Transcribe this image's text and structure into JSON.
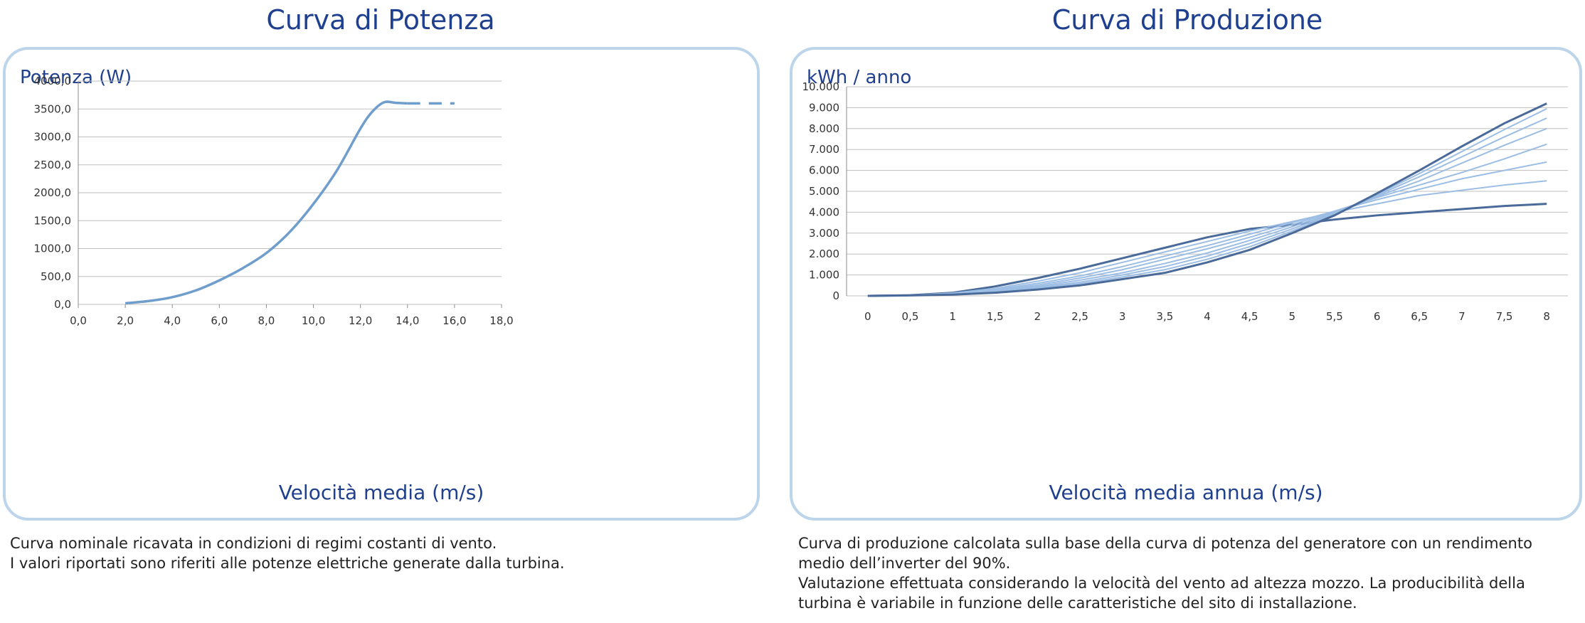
{
  "left": {
    "title": "Curva di Potenza",
    "caption": [
      "Curva nominale ricavata in condizioni di regimi costanti di vento.",
      "I valori riportati sono riferiti alle potenze elettriche generate dalla turbina."
    ]
  },
  "right": {
    "title": "Curva di Produzione",
    "caption": [
      "Curva di produzione calcolata sulla base della curva di potenza del generatore con un rendimento medio dell’inverter del 90%.",
      "Valutazione effettuata considerando la velocità del vento ad altezza mozzo. La producibilità della turbina è variabile in funzione delle caratteristiche del sito di installazione."
    ]
  },
  "colors": {
    "accent": "#1f3f8f",
    "frame": "#bcd5ea",
    "power_line": "#6f9dcc",
    "dark_line": "#4a6a9a",
    "light_line": "#9cbde4"
  },
  "chart_data": [
    {
      "type": "line",
      "title": "",
      "ylabel": "Potenza (W)",
      "xlabel": "Velocità media (m/s)",
      "xlim": [
        0,
        18
      ],
      "ylim": [
        0,
        4000
      ],
      "xticks": [
        "0,0",
        "2,0",
        "4,0",
        "6,0",
        "8,0",
        "10,0",
        "12,0",
        "14,0",
        "16,0",
        "18,0"
      ],
      "yticks": [
        "0,0",
        "500,0",
        "1000,0",
        "1500,0",
        "2000,0",
        "2500,0",
        "3000,0",
        "3500,0",
        "4000,0"
      ],
      "grid": true,
      "series": [
        {
          "style": "solid",
          "x": [
            2,
            3,
            4,
            5,
            6,
            7,
            8,
            9,
            10,
            11,
            12,
            12.5,
            13,
            13.5,
            14
          ],
          "y": [
            20,
            60,
            130,
            250,
            430,
            650,
            920,
            1300,
            1800,
            2400,
            3150,
            3450,
            3620,
            3610,
            3600
          ]
        },
        {
          "style": "dashed",
          "x": [
            14,
            16
          ],
          "y": [
            3600,
            3600
          ]
        }
      ]
    },
    {
      "type": "line",
      "title": "",
      "ylabel": "kWh / anno",
      "xlabel": "Velocità media annua (m/s)",
      "categories": [
        "0",
        "0,5",
        "1",
        "1,5",
        "2",
        "2,5",
        "3",
        "3,5",
        "4",
        "4,5",
        "5",
        "5,5",
        "6",
        "6,5",
        "7",
        "7,5",
        "8"
      ],
      "yticks": [
        "0",
        "1.000",
        "2.000",
        "3.000",
        "4.000",
        "5.000",
        "6.000",
        "7.000",
        "8.000",
        "9.000",
        "10.000"
      ],
      "ylim": [
        0,
        10000
      ],
      "grid": true,
      "series": [
        {
          "values": [
            0,
            30,
            150,
            450,
            850,
            1300,
            1800,
            2300,
            2800,
            3200,
            3400,
            3650,
            3850,
            4000,
            4150,
            4300,
            4400
          ]
        },
        {
          "values": [
            0,
            30,
            130,
            350,
            700,
            1100,
            1600,
            2100,
            2600,
            3100,
            3550,
            4000,
            4400,
            4800,
            5050,
            5300,
            5500
          ]
        },
        {
          "values": [
            0,
            25,
            110,
            300,
            600,
            950,
            1400,
            1900,
            2400,
            2950,
            3500,
            4050,
            4600,
            5100,
            5600,
            6000,
            6400
          ]
        },
        {
          "values": [
            0,
            25,
            100,
            260,
            520,
            850,
            1250,
            1750,
            2250,
            2800,
            3400,
            4050,
            4700,
            5300,
            5900,
            6550,
            7250
          ]
        },
        {
          "values": [
            0,
            20,
            90,
            220,
            450,
            750,
            1100,
            1550,
            2050,
            2650,
            3300,
            4000,
            4750,
            5500,
            6350,
            7200,
            8000
          ]
        },
        {
          "values": [
            0,
            20,
            80,
            190,
            400,
            650,
            1000,
            1400,
            1900,
            2500,
            3200,
            3950,
            4800,
            5700,
            6650,
            7600,
            8500
          ]
        },
        {
          "values": [
            0,
            20,
            70,
            170,
            350,
            580,
            900,
            1250,
            1750,
            2350,
            3100,
            3900,
            4850,
            5850,
            6900,
            7950,
            8950
          ]
        },
        {
          "values": [
            0,
            20,
            60,
            150,
            300,
            500,
            800,
            1100,
            1600,
            2200,
            3000,
            3850,
            4900,
            6000,
            7150,
            8250,
            9200
          ]
        }
      ]
    }
  ]
}
